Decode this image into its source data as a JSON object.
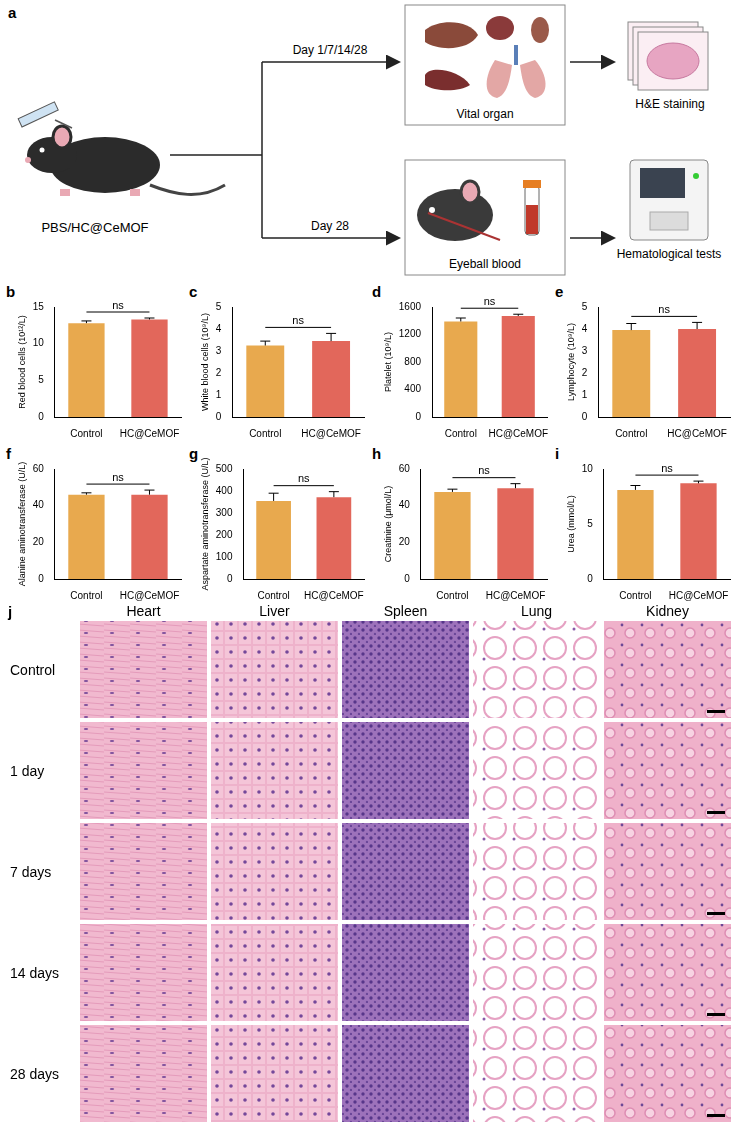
{
  "schematic": {
    "panel": "a",
    "treatment": "PBS/HC@CeMOF",
    "branches": [
      {
        "time": "Day 1/7/14/28",
        "sample": "Vital organ",
        "analysis": "H&E staining"
      },
      {
        "time": "Day 28",
        "sample": "Eyeball blood",
        "analysis": "Hematological tests"
      }
    ]
  },
  "chart_data": [
    {
      "type": "bar",
      "panel": "b",
      "y_label": "Red blood cells (10¹²/L)",
      "categories": [
        "Control",
        "HC@CeMOF"
      ],
      "values": [
        12.8,
        13.3
      ],
      "errors": [
        0.3,
        0.2
      ],
      "colors": [
        "#e8a94e",
        "#e2675b"
      ],
      "ylim": [
        0,
        15
      ],
      "yticks": [
        0,
        5,
        10,
        15
      ],
      "grid": false,
      "annotation": "ns"
    },
    {
      "type": "bar",
      "panel": "c",
      "y_label": "White blood cells (10⁹/L)",
      "categories": [
        "Control",
        "HC@CeMOF"
      ],
      "values": [
        3.25,
        3.45
      ],
      "errors": [
        0.2,
        0.35
      ],
      "colors": [
        "#e8a94e",
        "#e2675b"
      ],
      "ylim": [
        0,
        5
      ],
      "yticks": [
        0,
        1,
        2,
        3,
        4,
        5
      ],
      "grid": false,
      "annotation": "ns"
    },
    {
      "type": "bar",
      "panel": "d",
      "y_label": "Platelet (10⁹/L)",
      "categories": [
        "Control",
        "HC@CeMOF"
      ],
      "values": [
        1390,
        1470
      ],
      "errors": [
        50,
        25
      ],
      "colors": [
        "#e8a94e",
        "#e2675b"
      ],
      "ylim": [
        0,
        1600
      ],
      "yticks": [
        0,
        400,
        800,
        1200,
        1600
      ],
      "grid": false,
      "annotation": "ns"
    },
    {
      "type": "bar",
      "panel": "e",
      "y_label": "Lymphocyte (10⁹/L)",
      "categories": [
        "Control",
        "HC@CeMOF"
      ],
      "values": [
        3.95,
        4.0
      ],
      "errors": [
        0.3,
        0.3
      ],
      "colors": [
        "#e8a94e",
        "#e2675b"
      ],
      "ylim": [
        0,
        5
      ],
      "yticks": [
        0,
        1,
        2,
        3,
        4,
        5
      ],
      "grid": false,
      "annotation": "ns"
    },
    {
      "type": "bar",
      "panel": "f",
      "y_label": "Alanine aminotransferase (U/L)",
      "categories": [
        "Control",
        "HC@CeMOF"
      ],
      "values": [
        46,
        46
      ],
      "errors": [
        1,
        2.5
      ],
      "colors": [
        "#e8a94e",
        "#e2675b"
      ],
      "ylim": [
        0,
        60
      ],
      "yticks": [
        0,
        20,
        40,
        60
      ],
      "grid": false,
      "annotation": "ns"
    },
    {
      "type": "bar",
      "panel": "g",
      "y_label": "Aspartate aminotransferase (U/L)",
      "categories": [
        "Control",
        "HC@CeMOF"
      ],
      "values": [
        355,
        372
      ],
      "errors": [
        35,
        25
      ],
      "colors": [
        "#e8a94e",
        "#e2675b"
      ],
      "ylim": [
        0,
        500
      ],
      "yticks": [
        0,
        100,
        200,
        300,
        400,
        500
      ],
      "grid": false,
      "annotation": "ns"
    },
    {
      "type": "bar",
      "panel": "h",
      "y_label": "Creatinine (μmol/L)",
      "categories": [
        "Control",
        "HC@CeMOF"
      ],
      "values": [
        47.5,
        49.5
      ],
      "errors": [
        1.5,
        2.5
      ],
      "colors": [
        "#e8a94e",
        "#e2675b"
      ],
      "ylim": [
        0,
        60
      ],
      "yticks": [
        0,
        20,
        40,
        60
      ],
      "grid": false,
      "annotation": "ns"
    },
    {
      "type": "bar",
      "panel": "i",
      "y_label": "Urea (mmol/L)",
      "categories": [
        "Control",
        "HC@CeMOF"
      ],
      "values": [
        8.1,
        8.7
      ],
      "errors": [
        0.4,
        0.2
      ],
      "colors": [
        "#e8a94e",
        "#e2675b"
      ],
      "ylim": [
        0,
        10
      ],
      "yticks": [
        0,
        5,
        10
      ],
      "grid": false,
      "annotation": "ns"
    }
  ],
  "histology": {
    "panel": "j",
    "columns": [
      "Heart",
      "Liver",
      "Spleen",
      "Lung",
      "Kidney"
    ],
    "rows": [
      "Control",
      "1 day",
      "7 days",
      "14 days",
      "28 days"
    ]
  }
}
